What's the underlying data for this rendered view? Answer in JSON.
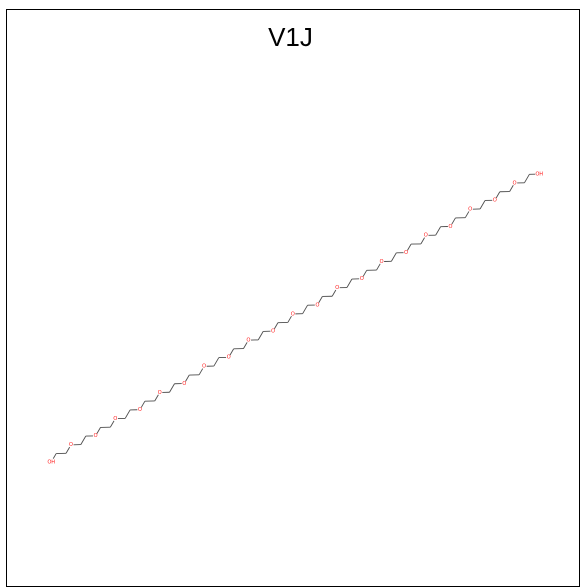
{
  "title": "V1J",
  "molecule": {
    "terminal_label": "OH",
    "ether_label": "O",
    "ether_count": 21,
    "bond_color": "#4d4d4d",
    "heteroatom_color": "#ff0d0d"
  }
}
